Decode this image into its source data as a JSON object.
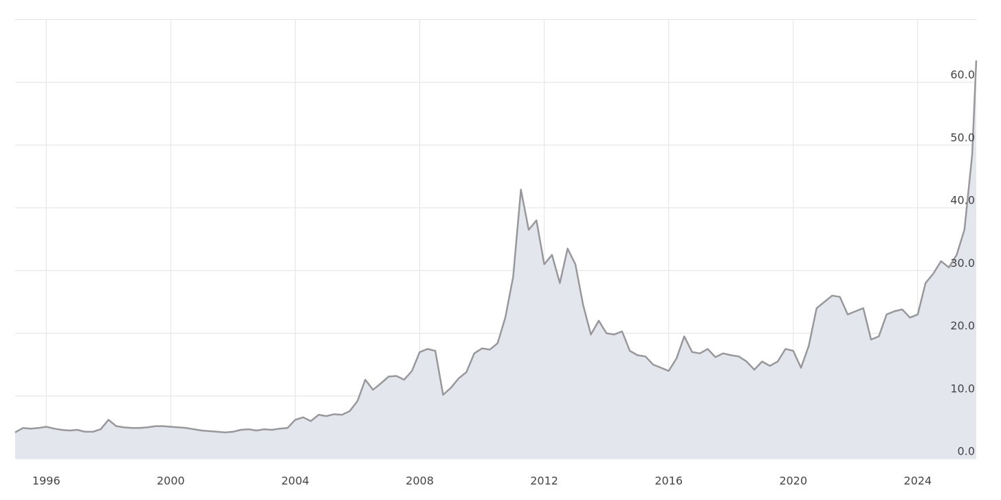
{
  "chart_data": {
    "type": "area",
    "x": [
      1995.0,
      1995.25,
      1995.5,
      1995.75,
      1996.0,
      1996.25,
      1996.5,
      1996.75,
      1997.0,
      1997.25,
      1997.5,
      1997.75,
      1998.0,
      1998.25,
      1998.5,
      1998.75,
      1999.0,
      1999.25,
      1999.5,
      1999.75,
      2000.0,
      2000.25,
      2000.5,
      2000.75,
      2001.0,
      2001.25,
      2001.5,
      2001.75,
      2002.0,
      2002.25,
      2002.5,
      2002.75,
      2003.0,
      2003.25,
      2003.5,
      2003.75,
      2004.0,
      2004.25,
      2004.5,
      2004.75,
      2005.0,
      2005.25,
      2005.5,
      2005.75,
      2006.0,
      2006.25,
      2006.5,
      2006.75,
      2007.0,
      2007.25,
      2007.5,
      2007.75,
      2008.0,
      2008.25,
      2008.5,
      2008.75,
      2009.0,
      2009.25,
      2009.5,
      2009.75,
      2010.0,
      2010.25,
      2010.5,
      2010.75,
      2011.0,
      2011.25,
      2011.5,
      2011.75,
      2012.0,
      2012.25,
      2012.5,
      2012.75,
      2013.0,
      2013.25,
      2013.5,
      2013.75,
      2014.0,
      2014.25,
      2014.5,
      2014.75,
      2015.0,
      2015.25,
      2015.5,
      2015.75,
      2016.0,
      2016.25,
      2016.5,
      2016.75,
      2017.0,
      2017.25,
      2017.5,
      2017.75,
      2018.0,
      2018.25,
      2018.5,
      2018.75,
      2019.0,
      2019.25,
      2019.5,
      2019.75,
      2020.0,
      2020.25,
      2020.5,
      2020.75,
      2021.0,
      2021.25,
      2021.5,
      2021.75,
      2022.0,
      2022.25,
      2022.5,
      2022.75,
      2023.0,
      2023.25,
      2023.5,
      2023.75,
      2024.0,
      2024.25,
      2024.5,
      2024.75,
      2025.0,
      2025.25,
      2025.5,
      2025.75,
      2025.88
    ],
    "values": [
      4.2,
      4.9,
      4.8,
      4.9,
      5.1,
      4.8,
      4.6,
      4.5,
      4.6,
      4.3,
      4.3,
      4.7,
      6.2,
      5.2,
      5.0,
      4.9,
      4.9,
      5.0,
      5.2,
      5.2,
      5.1,
      5.0,
      4.9,
      4.7,
      4.5,
      4.4,
      4.3,
      4.2,
      4.3,
      4.6,
      4.7,
      4.5,
      4.7,
      4.6,
      4.8,
      4.9,
      6.2,
      6.6,
      6.0,
      7.0,
      6.8,
      7.1,
      7.0,
      7.6,
      9.2,
      12.6,
      11.0,
      12.0,
      13.1,
      13.2,
      12.6,
      14.0,
      17.0,
      17.5,
      17.2,
      10.2,
      11.3,
      12.8,
      13.8,
      16.8,
      17.6,
      17.4,
      18.4,
      22.5,
      29.0,
      42.9,
      36.5,
      38.0,
      31.0,
      32.5,
      28.0,
      33.5,
      31.0,
      24.5,
      19.8,
      22.0,
      20.0,
      19.8,
      20.3,
      17.2,
      16.5,
      16.3,
      15.0,
      14.5,
      14.0,
      16.0,
      19.5,
      17.0,
      16.8,
      17.5,
      16.2,
      16.8,
      16.5,
      16.3,
      15.5,
      14.2,
      15.5,
      14.8,
      15.5,
      17.5,
      17.2,
      14.5,
      18.0,
      24.0,
      25.0,
      26.0,
      25.8,
      23.0,
      23.5,
      24.0,
      19.0,
      19.5,
      23.0,
      23.5,
      23.8,
      22.5,
      23.0,
      28.0,
      29.5,
      31.5,
      30.5,
      32.5,
      36.5,
      48.5,
      63.5
    ],
    "color": "#98989c",
    "fill": "#e3e6ec",
    "xlim": [
      1995.0,
      2025.88
    ],
    "xticks": [
      1996,
      2000,
      2004,
      2008,
      2012,
      2016,
      2020,
      2024
    ],
    "ylim": [
      0,
      70
    ],
    "yticks": [
      {
        "value": 0,
        "label": "0.0"
      },
      {
        "value": 10,
        "label": "10.0"
      },
      {
        "value": 20,
        "label": "20.0"
      },
      {
        "value": 30,
        "label": "30.0"
      },
      {
        "value": 40,
        "label": "40.0"
      },
      {
        "value": 50,
        "label": "50.0"
      },
      {
        "value": 60,
        "label": "60.0"
      }
    ],
    "grid": true
  }
}
